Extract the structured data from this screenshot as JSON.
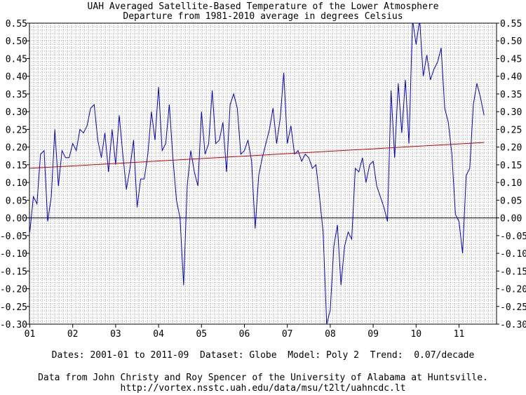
{
  "chart_data": {
    "type": "line",
    "title": "UAH Averaged Satellite-Based Temperature of the Lower Atmosphere",
    "subtitle": "Departure from 1981-2010 average in degrees Celsius",
    "xlabel": "",
    "ylabel": "",
    "x_start": "2001-01",
    "x_end": "2011-09",
    "x_tick_labels": [
      "01",
      "02",
      "03",
      "04",
      "05",
      "06",
      "07",
      "08",
      "09",
      "10",
      "11"
    ],
    "y_ticks": [
      0.55,
      0.5,
      0.45,
      0.4,
      0.35,
      0.3,
      0.25,
      0.2,
      0.15,
      0.1,
      0.05,
      0.0,
      -0.05,
      -0.1,
      -0.15,
      -0.2,
      -0.25,
      -0.3
    ],
    "y_tick_labels": [
      "0.55",
      "0.50",
      "0.45",
      "0.40",
      "0.35",
      "0.30",
      "0.25",
      "0.20",
      "0.15",
      "0.10",
      "0.05",
      "0.00",
      "-0.05",
      "-0.10",
      "-0.15",
      "-0.20",
      "-0.25",
      "-0.30"
    ],
    "ylim": [
      -0.3,
      0.55
    ],
    "grid": true,
    "series": [
      {
        "color": "#0000cc",
        "values": [
          -0.04,
          0.06,
          0.04,
          0.18,
          0.19,
          -0.01,
          0.06,
          0.25,
          0.09,
          0.19,
          0.17,
          0.17,
          0.21,
          0.19,
          0.25,
          0.24,
          0.26,
          0.31,
          0.32,
          0.22,
          0.17,
          0.24,
          0.13,
          0.25,
          0.15,
          0.29,
          0.18,
          0.08,
          0.14,
          0.22,
          0.03,
          0.11,
          0.11,
          0.18,
          0.3,
          0.22,
          0.37,
          0.19,
          0.21,
          0.32,
          0.17,
          0.05,
          0.0,
          -0.19,
          0.09,
          0.19,
          0.13,
          0.09,
          0.3,
          0.18,
          0.21,
          0.36,
          0.21,
          0.22,
          0.27,
          0.13,
          0.32,
          0.35,
          0.31,
          0.18,
          0.19,
          0.22,
          0.16,
          -0.03,
          0.12,
          0.17,
          0.21,
          0.25,
          0.31,
          0.21,
          0.28,
          0.41,
          0.21,
          0.26,
          0.18,
          0.19,
          0.16,
          0.18,
          0.17,
          0.14,
          0.15,
          0.06,
          -0.04,
          -0.3,
          -0.26,
          -0.08,
          -0.02,
          -0.19,
          -0.08,
          -0.04,
          -0.06,
          0.14,
          0.13,
          0.17,
          0.1,
          0.15,
          0.16,
          0.09,
          0.06,
          0.03,
          -0.01,
          0.36,
          0.17,
          0.38,
          0.24,
          0.39,
          0.21,
          0.56,
          0.49,
          0.56,
          0.4,
          0.46,
          0.39,
          0.42,
          0.44,
          0.48,
          0.31,
          0.27,
          0.18,
          0.01,
          -0.01,
          -0.1,
          0.12,
          0.14,
          0.32,
          0.38,
          0.34,
          0.29
        ]
      },
      {
        "color": "#cc0000",
        "values": [
          0.14,
          0.213
        ]
      }
    ]
  },
  "footer": {
    "info": "Dates: 2001-01 to 2011-09  Dataset: Globe  Model: Poly 2  Trend:  0.07/decade",
    "credit": "Data from John Christy and Roy Spencer of the University of Alabama at Huntsville.",
    "url": "http://vortex.nsstc.uah.edu/data/msu/t2lt/uahncdc.lt"
  }
}
